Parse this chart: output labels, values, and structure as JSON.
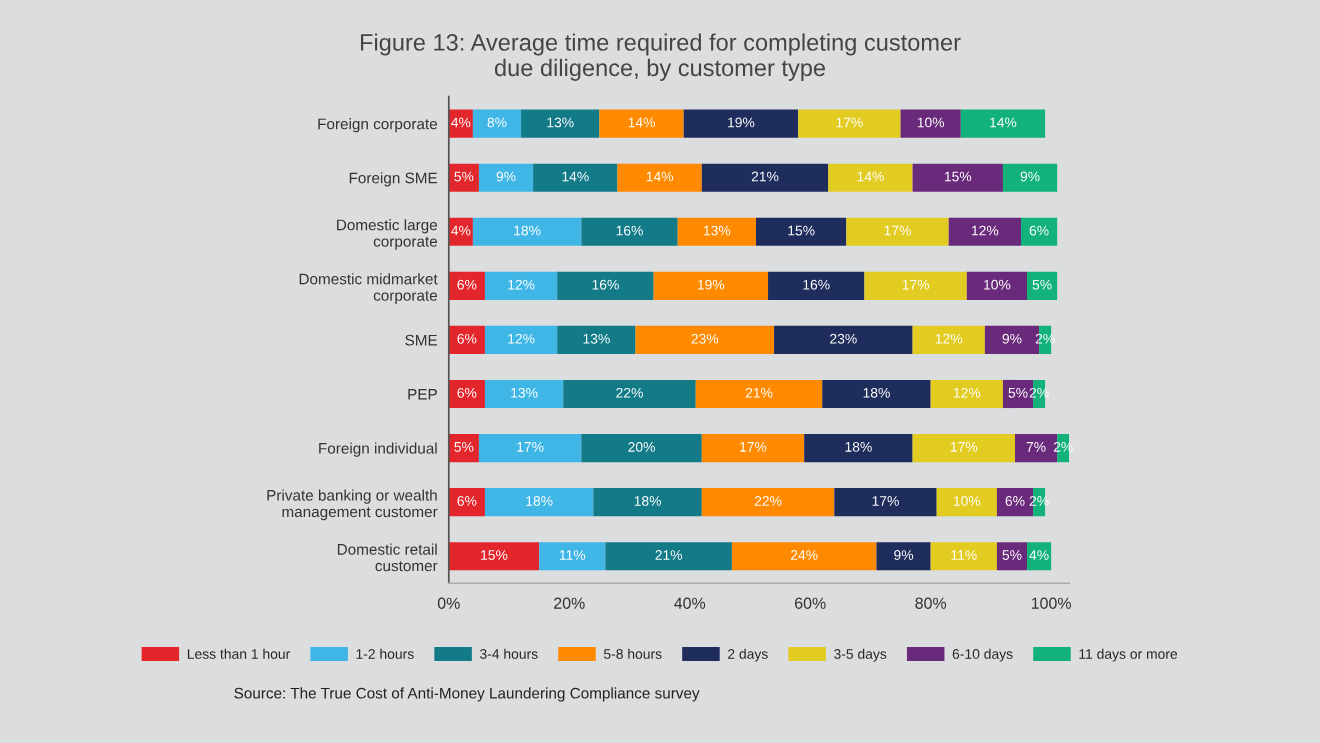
{
  "chart_data": {
    "type": "bar",
    "orientation": "horizontal",
    "stacked": true,
    "title": "Figure 13: Average time required for completing customer\ndue diligence, by customer type",
    "categories": [
      "Foreign corporate",
      "Foreign SME",
      "Domestic large\ncorporate",
      "Domestic midmarket\ncorporate",
      "SME",
      "PEP",
      "Foreign individual",
      "Private banking or wealth\nmanagement customer",
      "Domestic retail\ncustomer"
    ],
    "series": [
      {
        "name": "Less than 1 hour",
        "color": "#e3262b",
        "values": [
          4,
          5,
          4,
          6,
          6,
          6,
          5,
          6,
          15
        ],
        "value_labels": [
          "4%",
          "5%",
          "4%",
          "6%",
          "6%",
          "6%",
          "5%",
          "6%",
          "15%"
        ]
      },
      {
        "name": "1-2 hours",
        "color": "#3fb6e6",
        "values": [
          8,
          9,
          18,
          12,
          12,
          13,
          17,
          18,
          11
        ],
        "value_labels": [
          "8%",
          "9%",
          "18%",
          "12%",
          "12%",
          "13%",
          "17%",
          "18%",
          "11%"
        ]
      },
      {
        "name": "3-4 hours",
        "color": "#137a88",
        "values": [
          13,
          14,
          16,
          16,
          13,
          22,
          20,
          18,
          21
        ],
        "value_labels": [
          "13%",
          "14%",
          "16%",
          "16%",
          "13%",
          "22%",
          "20%",
          "18%",
          "21%"
        ]
      },
      {
        "name": "5-8 hours",
        "color": "#ff8a00",
        "values": [
          14,
          14,
          13,
          19,
          23,
          21,
          17,
          22,
          24
        ],
        "value_labels": [
          "14%",
          "14%",
          "13%",
          "19%",
          "23%",
          "21%",
          "17%",
          "22%",
          "24%"
        ]
      },
      {
        "name": "2 days",
        "color": "#1f2d5c",
        "values": [
          19,
          21,
          15,
          16,
          23,
          18,
          18,
          17,
          9
        ],
        "value_labels": [
          "19%",
          "21%",
          "15%",
          "16%",
          "23%",
          "18%",
          "18%",
          "17%",
          "9%"
        ]
      },
      {
        "name": "3-5 days",
        "color": "#e2cc22",
        "values": [
          17,
          14,
          17,
          17,
          12,
          12,
          17,
          10,
          11
        ],
        "value_labels": [
          "17%",
          "14%",
          "17%",
          "17%",
          "12%",
          "12%",
          "17%",
          "10%",
          "11%"
        ]
      },
      {
        "name": "6-10 days",
        "color": "#6a2a7b",
        "values": [
          10,
          15,
          12,
          10,
          9,
          5,
          7,
          6,
          5
        ],
        "value_labels": [
          "10%",
          "15%",
          "12%",
          "10%",
          "9%",
          "5%",
          "7%",
          "6%",
          "5%"
        ]
      },
      {
        "name": "11 days or more",
        "color": "#13b27a",
        "values": [
          14,
          9,
          6,
          5,
          2,
          2,
          2,
          2,
          4
        ],
        "value_labels": [
          "14%",
          "9%",
          "6%",
          "5%",
          "2%",
          "2%",
          "2%",
          "2%",
          "4%"
        ]
      }
    ],
    "xlim": [
      0,
      103
    ],
    "xticks": [
      {
        "value": 0,
        "label": "0%"
      },
      {
        "value": 20,
        "label": "20%"
      },
      {
        "value": 40,
        "label": "40%"
      },
      {
        "value": 60,
        "label": "60%"
      },
      {
        "value": 80,
        "label": "80%"
      },
      {
        "value": 100,
        "label": "100%"
      }
    ],
    "grid": false,
    "legend": "bottom",
    "annotations": [
      "Source: The True Cost of Anti-Money Laundering Compliance survey"
    ]
  }
}
